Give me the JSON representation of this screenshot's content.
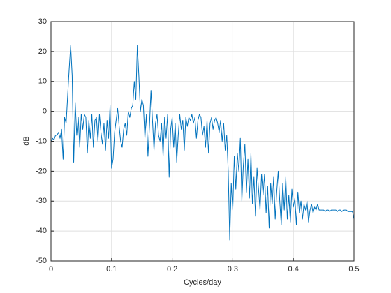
{
  "chart_data": {
    "type": "line",
    "xlabel": "Cycles/day",
    "ylabel": "dB",
    "xlim": [
      0,
      0.5
    ],
    "ylim": [
      -50,
      30
    ],
    "xticks": [
      0,
      0.1,
      0.2,
      0.3,
      0.4,
      0.5
    ],
    "yticks": [
      -50,
      -40,
      -30,
      -20,
      -10,
      0,
      10,
      20,
      30
    ],
    "grid": true,
    "x": [
      0,
      0.0025,
      0.005,
      0.0075,
      0.01,
      0.0125,
      0.015,
      0.0175,
      0.02,
      0.0225,
      0.025,
      0.0275,
      0.03,
      0.0325,
      0.035,
      0.0375,
      0.04,
      0.0425,
      0.045,
      0.0475,
      0.05,
      0.0525,
      0.055,
      0.0575,
      0.06,
      0.0625,
      0.065,
      0.0675,
      0.07,
      0.0725,
      0.075,
      0.0775,
      0.08,
      0.0825,
      0.085,
      0.0875,
      0.09,
      0.0925,
      0.095,
      0.0975,
      0.1,
      0.1025,
      0.105,
      0.1075,
      0.11,
      0.1125,
      0.115,
      0.1175,
      0.12,
      0.1225,
      0.125,
      0.1275,
      0.13,
      0.1325,
      0.135,
      0.1375,
      0.14,
      0.1425,
      0.145,
      0.1475,
      0.15,
      0.1525,
      0.155,
      0.1575,
      0.16,
      0.1625,
      0.165,
      0.1675,
      0.17,
      0.1725,
      0.175,
      0.1775,
      0.18,
      0.1825,
      0.185,
      0.1875,
      0.19,
      0.1925,
      0.195,
      0.1975,
      0.2,
      0.2025,
      0.205,
      0.2075,
      0.21,
      0.2125,
      0.215,
      0.2175,
      0.22,
      0.2225,
      0.225,
      0.2275,
      0.23,
      0.2325,
      0.235,
      0.2375,
      0.24,
      0.2425,
      0.245,
      0.2475,
      0.25,
      0.2525,
      0.255,
      0.2575,
      0.26,
      0.2625,
      0.265,
      0.2675,
      0.27,
      0.2725,
      0.275,
      0.2775,
      0.28,
      0.2825,
      0.285,
      0.2875,
      0.29,
      0.2925,
      0.295,
      0.2975,
      0.3,
      0.3025,
      0.305,
      0.3075,
      0.31,
      0.3125,
      0.315,
      0.3175,
      0.32,
      0.3225,
      0.325,
      0.3275,
      0.33,
      0.3325,
      0.335,
      0.3375,
      0.34,
      0.3425,
      0.345,
      0.3475,
      0.35,
      0.3525,
      0.355,
      0.3575,
      0.36,
      0.3625,
      0.365,
      0.3675,
      0.37,
      0.3725,
      0.375,
      0.3775,
      0.38,
      0.3825,
      0.385,
      0.3875,
      0.39,
      0.3925,
      0.395,
      0.3975,
      0.4,
      0.4025,
      0.405,
      0.4075,
      0.41,
      0.4125,
      0.415,
      0.4175,
      0.42,
      0.4225,
      0.425,
      0.4275,
      0.43,
      0.4325,
      0.435,
      0.4375,
      0.44,
      0.4425,
      0.445,
      0.4475,
      0.45,
      0.4525,
      0.455,
      0.4575,
      0.46,
      0.4625,
      0.465,
      0.4675,
      0.47,
      0.4725,
      0.475,
      0.4775,
      0.48,
      0.4825,
      0.485,
      0.4875,
      0.49,
      0.4925,
      0.495,
      0.4975,
      0.5
    ],
    "series": [
      {
        "color": "#0072bd",
        "values": [
          -10,
          -9,
          -9.5,
          -8,
          -8,
          -7,
          -9,
          -6,
          -16,
          -2,
          -4,
          5,
          14,
          22,
          12,
          -17,
          3,
          -8,
          -2,
          -12,
          -1,
          -6,
          -1,
          -2,
          -14,
          -3,
          -9,
          -1,
          -12,
          -3,
          -2,
          -10,
          -1,
          -7,
          -11,
          -4,
          -13,
          -3,
          -9,
          2,
          -19,
          -16,
          -7,
          -3,
          1,
          -5,
          -10,
          -12,
          -6,
          -4,
          -8,
          0,
          -2,
          1,
          2,
          10,
          4,
          22,
          12,
          0,
          4,
          2,
          -9,
          -1,
          -15,
          -5,
          7,
          -3,
          -13,
          -4,
          -1,
          -8,
          -10,
          -4,
          -15,
          -2,
          -9,
          -1,
          -22,
          -6,
          -2,
          -12,
          -4,
          -17,
          -8,
          -1,
          -6,
          -3,
          -13,
          -2,
          -5,
          -2,
          -3,
          -1,
          -4,
          -2,
          -9,
          -3,
          -1,
          -2,
          -8,
          -5,
          -12,
          -3,
          -14,
          -4,
          -2,
          -6,
          -3,
          -2,
          -4,
          -7,
          -3,
          -10,
          -4,
          -13,
          -8,
          -20,
          -43,
          -24,
          -33,
          -15,
          -26,
          -14,
          -20,
          -9,
          -30,
          -18,
          -11,
          -27,
          -16,
          -29,
          -14,
          -31,
          -22,
          -35,
          -19,
          -26,
          -33,
          -21,
          -28,
          -21,
          -34,
          -25,
          -39,
          -24,
          -31,
          -22,
          -36,
          -27,
          -20,
          -30,
          -38,
          -24,
          -33,
          -22,
          -36,
          -28,
          -37,
          -26,
          -32,
          -29,
          -38,
          -27,
          -34,
          -30,
          -36,
          -31,
          -33,
          -30,
          -37,
          -33,
          -31,
          -34,
          -32,
          -33,
          -31,
          -33,
          -33,
          -33,
          -33,
          -33.5,
          -33,
          -33,
          -33.5,
          -33,
          -33,
          -33,
          -33,
          -33.5,
          -33,
          -33,
          -33.5,
          -33,
          -33,
          -33,
          -33.5,
          -33.5,
          -33.5,
          -33.5,
          -36
        ]
      }
    ]
  }
}
